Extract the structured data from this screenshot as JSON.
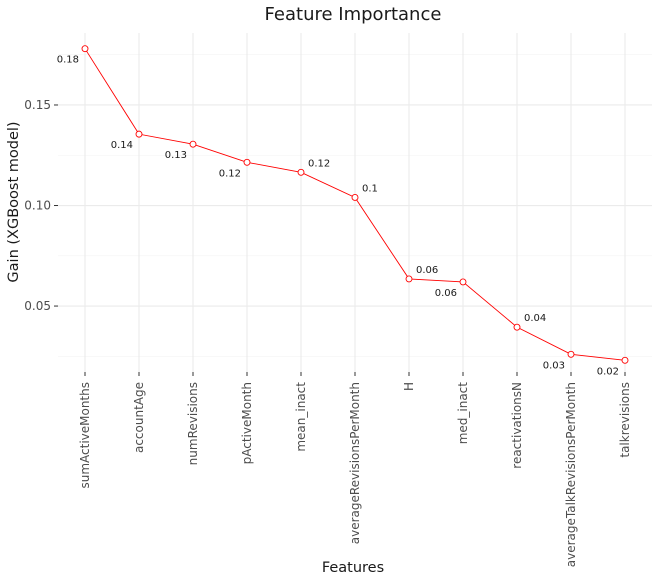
{
  "chart_data": {
    "type": "line",
    "title": "Feature Importance",
    "xlabel": "Features",
    "ylabel": "Gain (XGBoost model)",
    "categories": [
      "sumActiveMonths",
      "accountAge",
      "numRevisions",
      "pActiveMonth",
      "mean_inact",
      "averageRevisionsPerMonth",
      "H",
      "med_inact",
      "reactivationsN",
      "averageTalkRevisionsPerMonth",
      "talkrevisions"
    ],
    "values": [
      0.178,
      0.1355,
      0.1305,
      0.1215,
      0.1165,
      0.104,
      0.0635,
      0.062,
      0.0395,
      0.026,
      0.023
    ],
    "data_labels": [
      "0.18",
      "0.14",
      "0.13",
      "0.12",
      "0.12",
      "0.1",
      "0.06",
      "0.06",
      "0.04",
      "0.03",
      "0.02"
    ],
    "label_placement": [
      "left",
      "left",
      "left",
      "left",
      "right",
      "right",
      "right",
      "left",
      "right",
      "left",
      "left"
    ],
    "yticks": [
      0.05,
      0.1,
      0.15
    ],
    "ytick_labels": [
      "0.05",
      "0.10",
      "0.15"
    ],
    "ylim": [
      0.0172,
      0.1858
    ],
    "grid": true,
    "colors": {
      "line": "#ff0000",
      "marker_fill": "#ffffff",
      "marker_stroke": "#ff0000"
    }
  }
}
